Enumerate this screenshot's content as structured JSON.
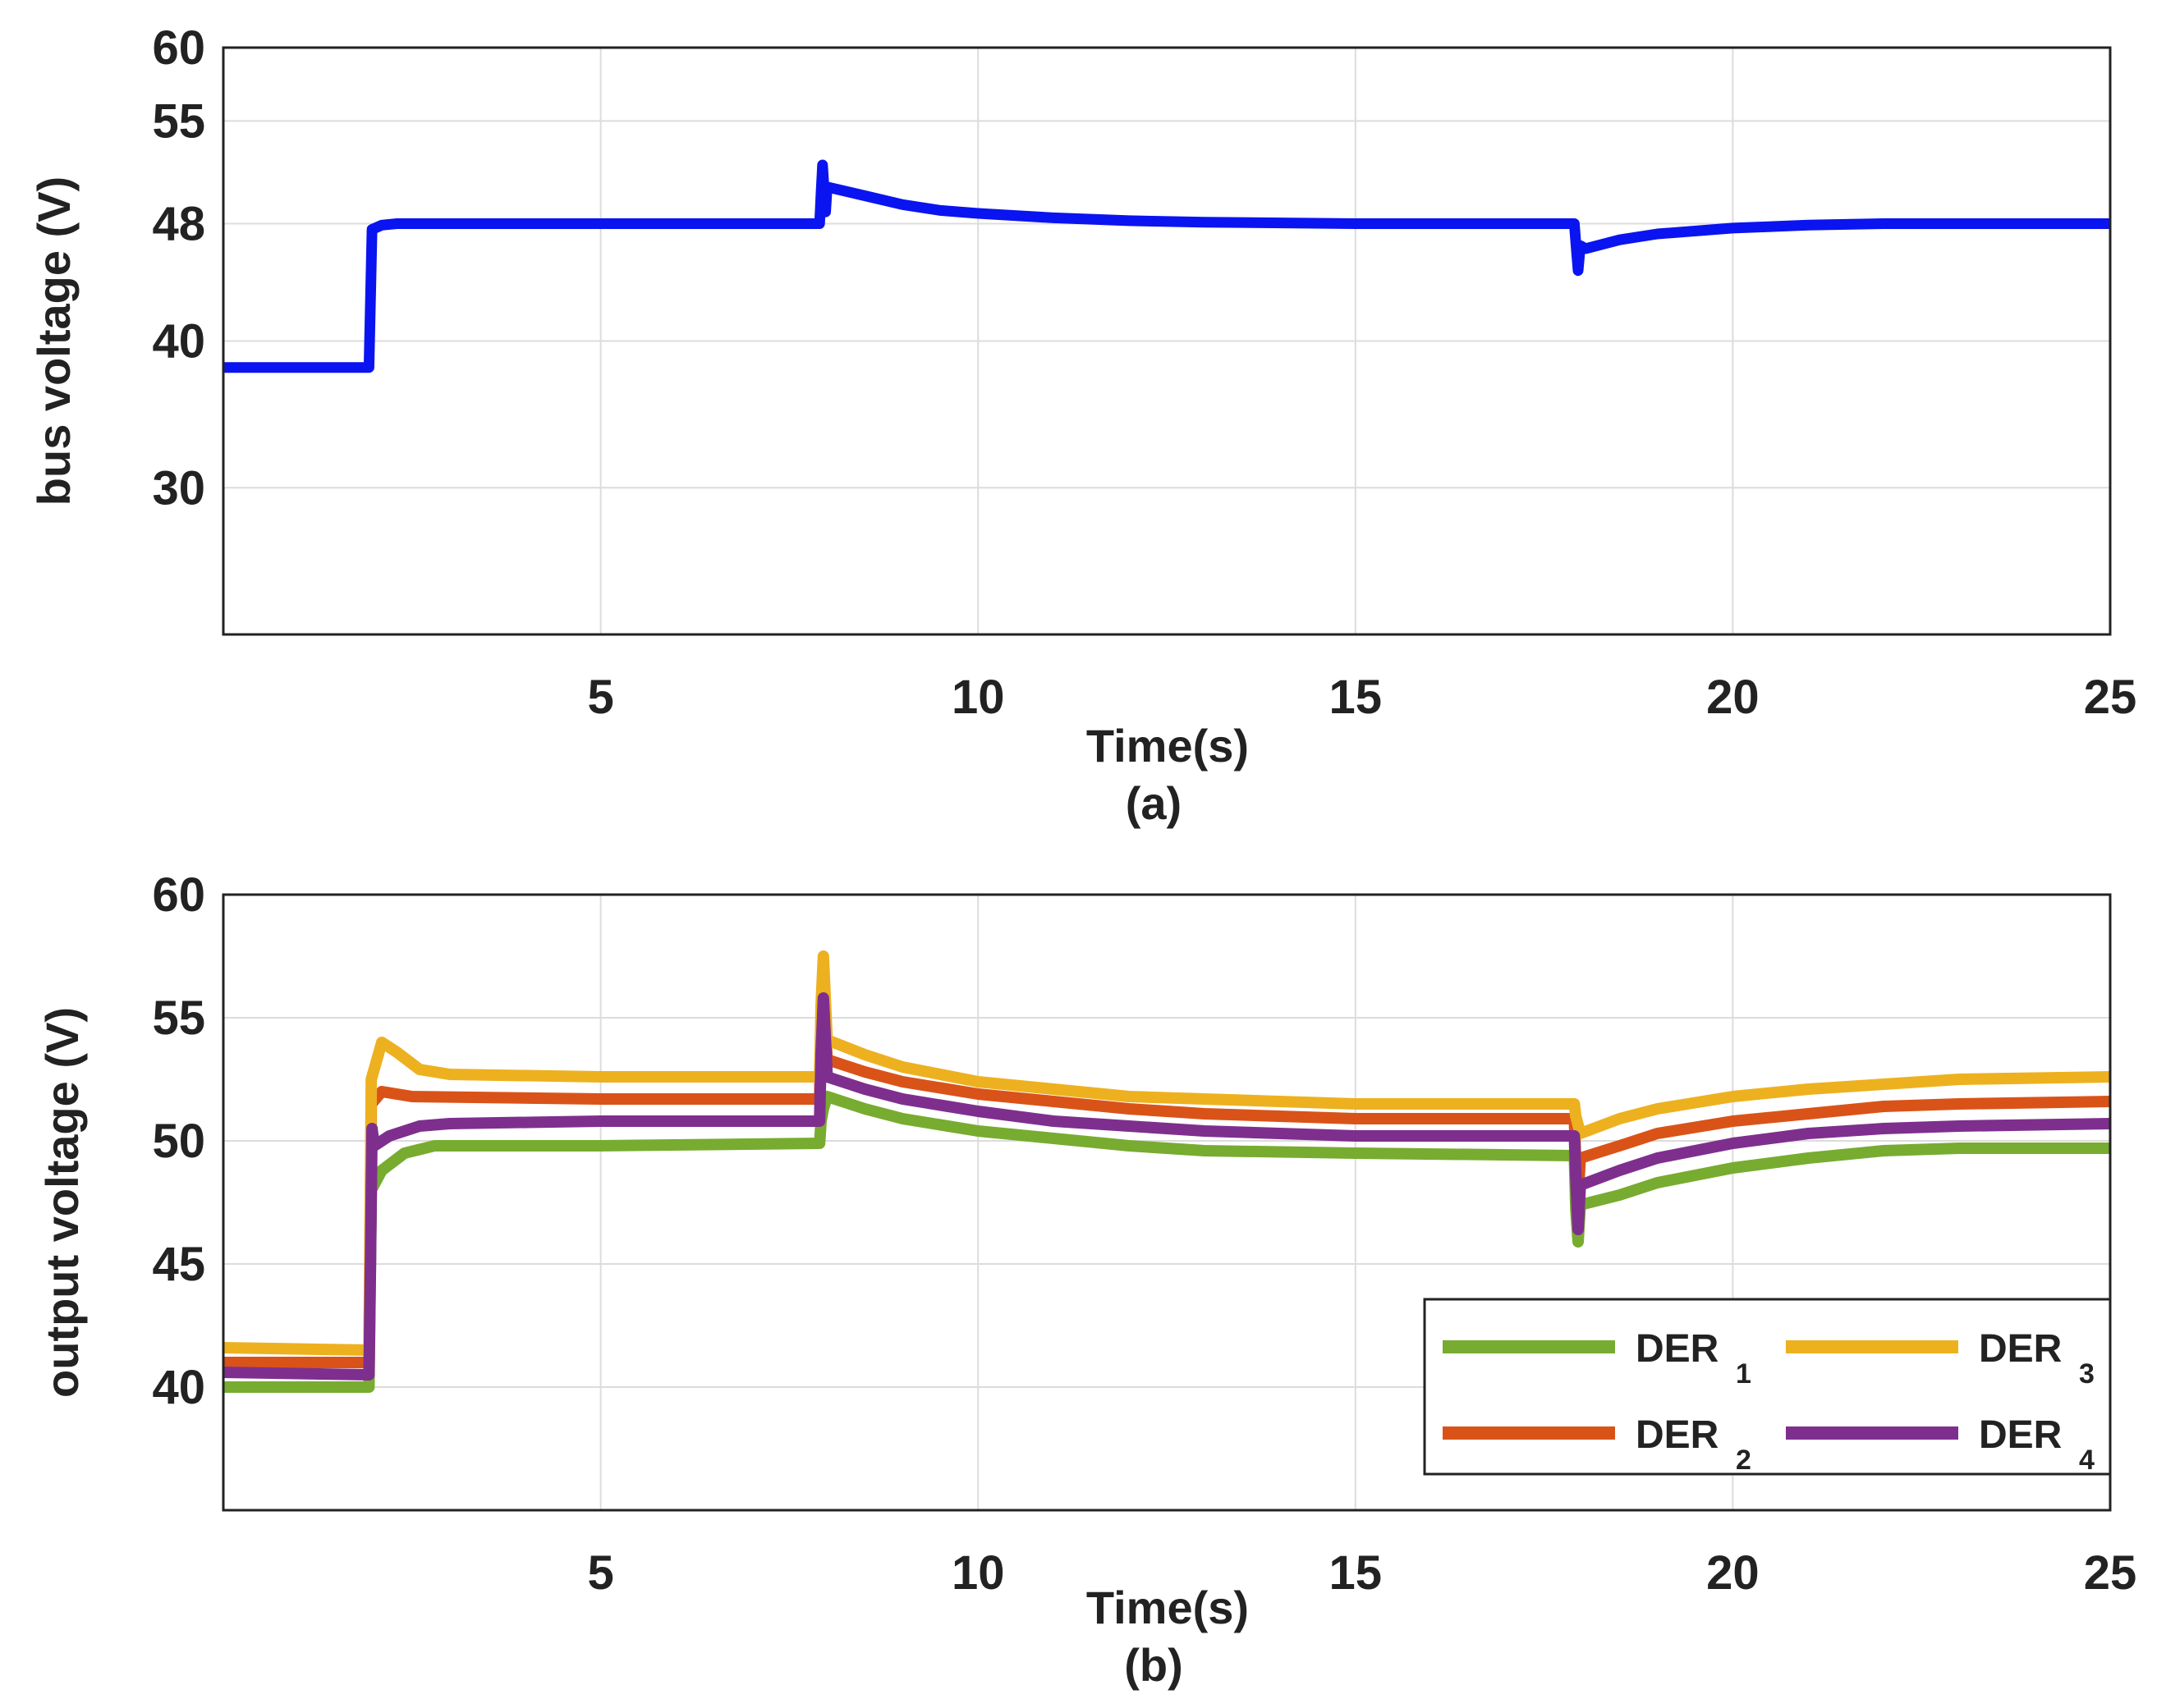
{
  "chart_data": [
    {
      "id": "a",
      "type": "line",
      "panel_label": "(a)",
      "xlabel": "Time(s)",
      "ylabel": "bus voltage (V)",
      "xlim": [
        0,
        25
      ],
      "ylim": [
        20,
        60
      ],
      "xticks": [
        5,
        10,
        15,
        20,
        25
      ],
      "yticks": [
        30,
        40,
        48,
        55,
        60
      ],
      "grid": true,
      "series": [
        {
          "name": "bus voltage",
          "color": "#0a14f0",
          "points": [
            [
              0,
              38.2
            ],
            [
              1.93,
              38.2
            ],
            [
              1.97,
              47.6
            ],
            [
              2.1,
              47.9
            ],
            [
              2.3,
              48.0
            ],
            [
              5,
              48.0
            ],
            [
              7.9,
              48.0
            ],
            [
              7.92,
              50.1
            ],
            [
              7.94,
              52.0
            ],
            [
              7.96,
              50.3
            ],
            [
              7.98,
              48.8
            ],
            [
              8.0,
              50.5
            ],
            [
              8.5,
              49.9
            ],
            [
              9,
              49.3
            ],
            [
              9.5,
              48.9
            ],
            [
              10,
              48.7
            ],
            [
              11,
              48.4
            ],
            [
              12,
              48.2
            ],
            [
              13,
              48.1
            ],
            [
              15,
              48.0
            ],
            [
              17.9,
              48.0
            ],
            [
              17.92,
              46.7
            ],
            [
              17.95,
              44.8
            ],
            [
              17.98,
              46.5
            ],
            [
              18.05,
              46.3
            ],
            [
              18.5,
              46.9
            ],
            [
              19,
              47.3
            ],
            [
              20,
              47.7
            ],
            [
              21,
              47.9
            ],
            [
              22,
              48.0
            ],
            [
              25,
              48.0
            ]
          ]
        }
      ]
    },
    {
      "id": "b",
      "type": "line",
      "panel_label": "(b)",
      "xlabel": "Time(s)",
      "ylabel": "output voltage (V)",
      "xlim": [
        0,
        25
      ],
      "ylim": [
        35,
        60
      ],
      "xticks": [
        5,
        10,
        15,
        20,
        25
      ],
      "yticks": [
        40,
        45,
        50,
        55,
        60
      ],
      "grid": true,
      "legend_position": "bottom-right",
      "series": [
        {
          "name": "DER",
          "subscript": "1",
          "color": "#77ac30",
          "points": [
            [
              0,
              40.0
            ],
            [
              1.93,
              40.0
            ],
            [
              1.96,
              48.0
            ],
            [
              2.1,
              48.8
            ],
            [
              2.4,
              49.5
            ],
            [
              2.8,
              49.8
            ],
            [
              5,
              49.8
            ],
            [
              7.9,
              49.9
            ],
            [
              7.92,
              50.8
            ],
            [
              7.95,
              51.3
            ],
            [
              8.0,
              51.8
            ],
            [
              8.5,
              51.3
            ],
            [
              9,
              50.9
            ],
            [
              10,
              50.4
            ],
            [
              11,
              50.1
            ],
            [
              12,
              49.8
            ],
            [
              13,
              49.6
            ],
            [
              15,
              49.5
            ],
            [
              17.9,
              49.4
            ],
            [
              17.92,
              47.2
            ],
            [
              17.95,
              45.9
            ],
            [
              17.98,
              47.4
            ],
            [
              18.5,
              47.8
            ],
            [
              19,
              48.3
            ],
            [
              20,
              48.9
            ],
            [
              21,
              49.3
            ],
            [
              22,
              49.6
            ],
            [
              23,
              49.7
            ],
            [
              25,
              49.7
            ]
          ]
        },
        {
          "name": "DER",
          "subscript": "2",
          "color": "#d95319",
          "points": [
            [
              0,
              41.0
            ],
            [
              1.93,
              41.0
            ],
            [
              1.96,
              51.5
            ],
            [
              2.1,
              52.0
            ],
            [
              2.5,
              51.8
            ],
            [
              5,
              51.7
            ],
            [
              7.9,
              51.7
            ],
            [
              7.92,
              54.5
            ],
            [
              7.95,
              56.0
            ],
            [
              8.0,
              53.3
            ],
            [
              8.5,
              52.8
            ],
            [
              9,
              52.4
            ],
            [
              10,
              51.9
            ],
            [
              11,
              51.6
            ],
            [
              12,
              51.3
            ],
            [
              13,
              51.1
            ],
            [
              15,
              50.9
            ],
            [
              17.9,
              50.9
            ],
            [
              17.92,
              49.0
            ],
            [
              17.95,
              47.8
            ],
            [
              17.98,
              49.3
            ],
            [
              18.5,
              49.8
            ],
            [
              19,
              50.3
            ],
            [
              20,
              50.8
            ],
            [
              21,
              51.1
            ],
            [
              22,
              51.4
            ],
            [
              23,
              51.5
            ],
            [
              25,
              51.6
            ]
          ]
        },
        {
          "name": "DER",
          "subscript": "3",
          "color": "#edb120",
          "points": [
            [
              0,
              41.6
            ],
            [
              1.93,
              41.5
            ],
            [
              1.96,
              52.5
            ],
            [
              2.1,
              54.0
            ],
            [
              2.3,
              53.6
            ],
            [
              2.6,
              52.9
            ],
            [
              3,
              52.7
            ],
            [
              5,
              52.6
            ],
            [
              7.9,
              52.6
            ],
            [
              7.92,
              55.5
            ],
            [
              7.95,
              57.5
            ],
            [
              8.0,
              54.1
            ],
            [
              8.5,
              53.5
            ],
            [
              9,
              53.0
            ],
            [
              10,
              52.4
            ],
            [
              11,
              52.1
            ],
            [
              12,
              51.8
            ],
            [
              13,
              51.7
            ],
            [
              15,
              51.5
            ],
            [
              17.9,
              51.5
            ],
            [
              17.92,
              51.0
            ],
            [
              17.98,
              50.3
            ],
            [
              18.5,
              50.9
            ],
            [
              19,
              51.3
            ],
            [
              20,
              51.8
            ],
            [
              21,
              52.1
            ],
            [
              22,
              52.3
            ],
            [
              23,
              52.5
            ],
            [
              25,
              52.6
            ]
          ]
        },
        {
          "name": "DER",
          "subscript": "4",
          "color": "#7e2f8e",
          "points": [
            [
              0,
              40.6
            ],
            [
              1.93,
              40.5
            ],
            [
              1.95,
              45.0
            ],
            [
              1.97,
              50.5
            ],
            [
              2.0,
              49.8
            ],
            [
              2.2,
              50.2
            ],
            [
              2.6,
              50.6
            ],
            [
              3,
              50.7
            ],
            [
              5,
              50.8
            ],
            [
              7.9,
              50.8
            ],
            [
              7.92,
              53.5
            ],
            [
              7.95,
              55.8
            ],
            [
              7.98,
              54.0
            ],
            [
              8.0,
              52.6
            ],
            [
              8.5,
              52.1
            ],
            [
              9,
              51.7
            ],
            [
              10,
              51.2
            ],
            [
              11,
              50.8
            ],
            [
              12,
              50.6
            ],
            [
              13,
              50.4
            ],
            [
              15,
              50.2
            ],
            [
              17.9,
              50.2
            ],
            [
              17.92,
              48.5
            ],
            [
              17.95,
              46.4
            ],
            [
              17.98,
              48.2
            ],
            [
              18.5,
              48.8
            ],
            [
              19,
              49.3
            ],
            [
              20,
              49.9
            ],
            [
              21,
              50.3
            ],
            [
              22,
              50.5
            ],
            [
              23,
              50.6
            ],
            [
              25,
              50.7
            ]
          ]
        }
      ]
    }
  ]
}
